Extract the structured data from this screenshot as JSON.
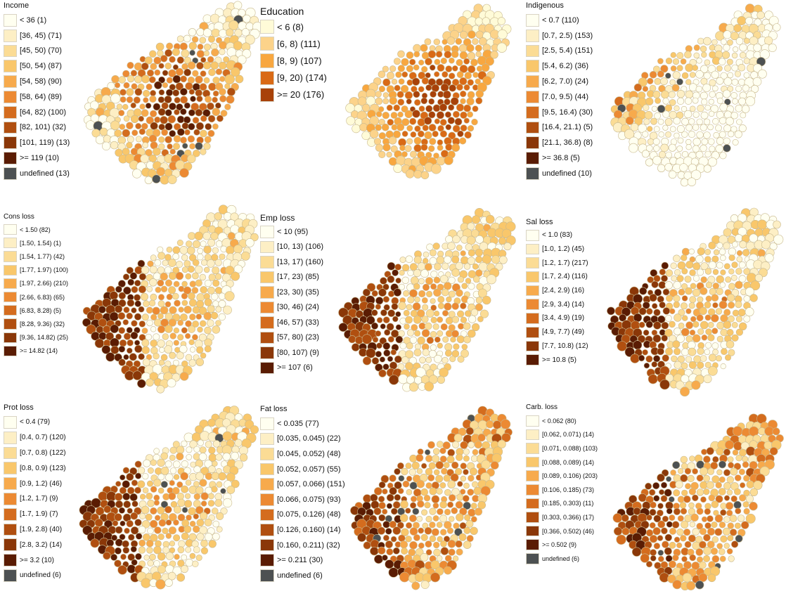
{
  "figure": {
    "panels": [
      {
        "id": "income",
        "title": "Income",
        "pattern": "center-dark",
        "nodata": "few",
        "legend": [
          {
            "label": "< 36 (1)",
            "color": "#fffff0"
          },
          {
            "label": "[36, 45) (71)",
            "color": "#fdefc5"
          },
          {
            "label": "[45, 50) (70)",
            "color": "#fbdc95"
          },
          {
            "label": "[50, 54) (87)",
            "color": "#f9c76b"
          },
          {
            "label": "[54, 58) (90)",
            "color": "#f7aa4c"
          },
          {
            "label": "[58, 64) (89)",
            "color": "#ec8a33"
          },
          {
            "label": "[64, 82) (100)",
            "color": "#d46c1e"
          },
          {
            "label": "[82, 101) (32)",
            "color": "#b04f10"
          },
          {
            "label": "[101, 119) (13)",
            "color": "#8a3708"
          },
          {
            "label": ">= 119 (10)",
            "color": "#5a1c03"
          },
          {
            "label": "undefined (13)",
            "color": "#4d5152"
          }
        ]
      },
      {
        "id": "education",
        "title": "Education",
        "pattern": "center-dark-strong",
        "nodata": "none",
        "legend": [
          {
            "label": "< 6 (8)",
            "color": "#fffbd8"
          },
          {
            "label": "[6, 8) (111)",
            "color": "#fcd38a"
          },
          {
            "label": "[8, 9) (107)",
            "color": "#f8a740"
          },
          {
            "label": "[9, 20) (174)",
            "color": "#d96a16"
          },
          {
            "label": ">= 20 (176)",
            "color": "#a84209"
          }
        ]
      },
      {
        "id": "indigenous",
        "title": "Indigenous",
        "pattern": "northwest-dark",
        "nodata": "few",
        "legend": [
          {
            "label": "< 0.7 (110)",
            "color": "#fffff0"
          },
          {
            "label": "[0.7, 2.5) (153)",
            "color": "#fdefc5"
          },
          {
            "label": "[2.5, 5.4) (151)",
            "color": "#fbdc95"
          },
          {
            "label": "[5.4, 6.2) (36)",
            "color": "#f9c76b"
          },
          {
            "label": "[6.2, 7.0) (24)",
            "color": "#f7aa4c"
          },
          {
            "label": "[7.0, 9.5) (44)",
            "color": "#ec8a33"
          },
          {
            "label": "[9.5, 16.4) (30)",
            "color": "#d46c1e"
          },
          {
            "label": "[16.4, 21.1) (5)",
            "color": "#b04f10"
          },
          {
            "label": "[21.1, 36.8) (8)",
            "color": "#8a3708"
          },
          {
            "label": ">= 36.8 (5)",
            "color": "#5a1c03"
          },
          {
            "label": "undefined (10)",
            "color": "#4d5152"
          }
        ]
      },
      {
        "id": "cons-loss",
        "title": "Cons loss",
        "pattern": "west-dark",
        "nodata": "none",
        "legend": [
          {
            "label": "< 1.50 (82)",
            "color": "#fffff0"
          },
          {
            "label": "[1.50, 1.54) (1)",
            "color": "#fdefc5"
          },
          {
            "label": "[1.54, 1.77) (42)",
            "color": "#fbdc95"
          },
          {
            "label": "[1.77, 1.97) (100)",
            "color": "#f9c76b"
          },
          {
            "label": "[1.97, 2.66) (210)",
            "color": "#f7aa4c"
          },
          {
            "label": "[2.66, 6.83) (65)",
            "color": "#ec8a33"
          },
          {
            "label": "[6.83, 8.28) (5)",
            "color": "#d46c1e"
          },
          {
            "label": "[8.28, 9.36) (32)",
            "color": "#b04f10"
          },
          {
            "label": "[9.36, 14.82) (25)",
            "color": "#8a3708"
          },
          {
            "label": ">= 14.82 (14)",
            "color": "#5a1c03"
          }
        ]
      },
      {
        "id": "emp-loss",
        "title": "Emp loss",
        "pattern": "west-dark",
        "nodata": "none",
        "legend": [
          {
            "label": "< 10 (95)",
            "color": "#fffff0"
          },
          {
            "label": "[10, 13) (106)",
            "color": "#fdefc5"
          },
          {
            "label": "[13, 17) (160)",
            "color": "#fbdc95"
          },
          {
            "label": "[17, 23) (85)",
            "color": "#f9c76b"
          },
          {
            "label": "[23, 30) (35)",
            "color": "#f7aa4c"
          },
          {
            "label": "[30, 46) (24)",
            "color": "#ec8a33"
          },
          {
            "label": "[46, 57) (33)",
            "color": "#d46c1e"
          },
          {
            "label": "[57, 80) (23)",
            "color": "#b04f10"
          },
          {
            "label": "[80, 107) (9)",
            "color": "#8a3708"
          },
          {
            "label": ">= 107 (6)",
            "color": "#5a1c03"
          }
        ]
      },
      {
        "id": "sal-loss",
        "title": "Sal loss",
        "pattern": "west-dark",
        "nodata": "none",
        "legend": [
          {
            "label": "< 1.0 (83)",
            "color": "#fffff0"
          },
          {
            "label": "[1.0, 1.2) (45)",
            "color": "#fdefc5"
          },
          {
            "label": "[1.2, 1.7) (217)",
            "color": "#fbdc95"
          },
          {
            "label": "[1.7, 2.4) (116)",
            "color": "#f9c76b"
          },
          {
            "label": "[2.4, 2.9) (16)",
            "color": "#f7aa4c"
          },
          {
            "label": "[2.9, 3.4) (14)",
            "color": "#ec8a33"
          },
          {
            "label": "[3.4, 4.9) (19)",
            "color": "#d46c1e"
          },
          {
            "label": "[4.9, 7.7) (49)",
            "color": "#b04f10"
          },
          {
            "label": "[7.7, 10.8) (12)",
            "color": "#8a3708"
          },
          {
            "label": ">= 10.8 (5)",
            "color": "#5a1c03"
          }
        ]
      },
      {
        "id": "prot-loss",
        "title": "Prot loss",
        "pattern": "west-dark",
        "nodata": "few",
        "legend": [
          {
            "label": "< 0.4 (79)",
            "color": "#fffff0"
          },
          {
            "label": "[0.4, 0.7) (120)",
            "color": "#fdefc5"
          },
          {
            "label": "[0.7, 0.8) (122)",
            "color": "#fbdc95"
          },
          {
            "label": "[0.8, 0.9) (123)",
            "color": "#f9c76b"
          },
          {
            "label": "[0.9, 1.2) (46)",
            "color": "#f7aa4c"
          },
          {
            "label": "[1.2, 1.7) (9)",
            "color": "#ec8a33"
          },
          {
            "label": "[1.7, 1.9) (7)",
            "color": "#d46c1e"
          },
          {
            "label": "[1.9, 2.8) (40)",
            "color": "#b04f10"
          },
          {
            "label": "[2.8, 3.2) (14)",
            "color": "#8a3708"
          },
          {
            "label": ">= 3.2 (10)",
            "color": "#5a1c03"
          },
          {
            "label": "undefined (6)",
            "color": "#4d5152"
          }
        ]
      },
      {
        "id": "fat-loss",
        "title": "Fat loss",
        "pattern": "west-dark-mixed",
        "nodata": "few",
        "legend": [
          {
            "label": "< 0.035 (77)",
            "color": "#fffff0"
          },
          {
            "label": "[0.035, 0.045) (22)",
            "color": "#fdefc5"
          },
          {
            "label": "[0.045, 0.052) (48)",
            "color": "#fbdc95"
          },
          {
            "label": "[0.052, 0.057) (55)",
            "color": "#f9c76b"
          },
          {
            "label": "[0.057, 0.066) (151)",
            "color": "#f7aa4c"
          },
          {
            "label": "[0.066, 0.075) (93)",
            "color": "#ec8a33"
          },
          {
            "label": "[0.075, 0.126) (48)",
            "color": "#d46c1e"
          },
          {
            "label": "[0.126, 0.160) (14)",
            "color": "#b04f10"
          },
          {
            "label": "[0.160, 0.211) (32)",
            "color": "#8a3708"
          },
          {
            "label": ">= 0.211 (30)",
            "color": "#5a1c03"
          },
          {
            "label": "undefined (6)",
            "color": "#4d5152"
          }
        ]
      },
      {
        "id": "carb-loss",
        "title": "Carb. loss",
        "pattern": "west-dark-mixed",
        "nodata": "few",
        "legend": [
          {
            "label": "< 0.062 (80)",
            "color": "#fffff0"
          },
          {
            "label": "[0.062, 0.071) (14)",
            "color": "#fdefc5"
          },
          {
            "label": "[0.071, 0.088) (103)",
            "color": "#fbdc95"
          },
          {
            "label": "[0.088, 0.089) (14)",
            "color": "#f9c76b"
          },
          {
            "label": "[0.089, 0.106) (203)",
            "color": "#f7aa4c"
          },
          {
            "label": "[0.106, 0.185) (73)",
            "color": "#ec8a33"
          },
          {
            "label": "[0.185, 0.303) (11)",
            "color": "#d46c1e"
          },
          {
            "label": "[0.303, 0.366) (17)",
            "color": "#b04f10"
          },
          {
            "label": "[0.366, 0.502) (46)",
            "color": "#8a3708"
          },
          {
            "label": ">= 0.502 (9)",
            "color": "#5a1c03"
          },
          {
            "label": "undefined (6)",
            "color": "#4d5152"
          }
        ]
      }
    ]
  }
}
